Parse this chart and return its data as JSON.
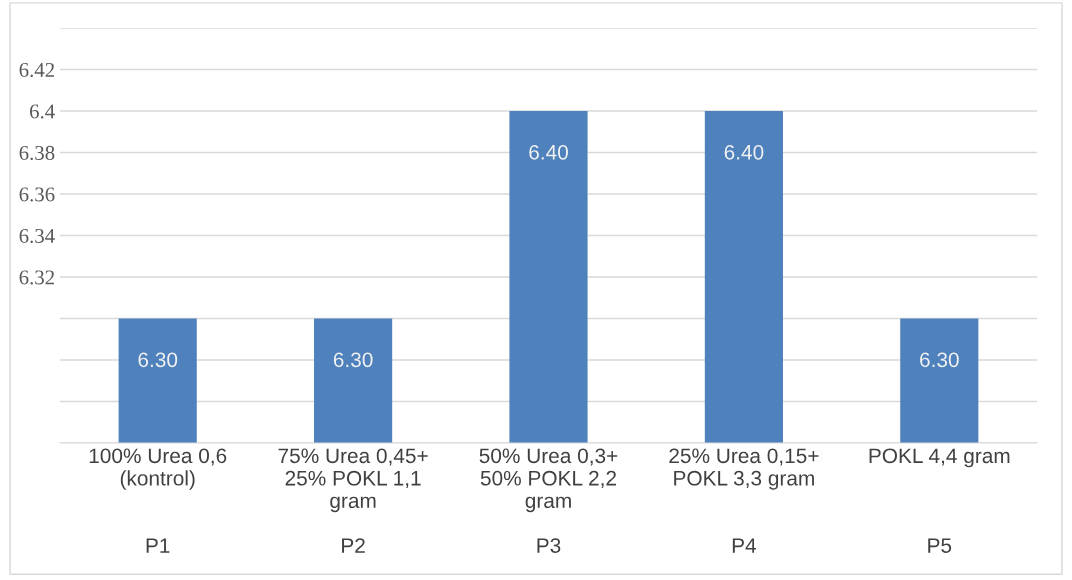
{
  "chart_data": {
    "type": "bar",
    "categories": [
      "100% Urea 0,6\n(kontrol)\n\n\nP1",
      "75% Urea 0,45+\n25% POKL 1,1\ngram\n\nP2",
      "50% Urea 0,3+\n50% POKL 2,2\ngram\n\nP3",
      "25% Urea 0,15+\nPOKL 3,3 gram\n\n\nP4",
      "POKL 4,4 gram\n\n\n\nP5"
    ],
    "values": [
      6.3,
      6.3,
      6.4,
      6.4,
      6.3
    ],
    "color": "#4f81bd",
    "ylim": [
      6.24,
      6.44
    ],
    "yticks": [
      {
        "value": 6.24,
        "label": null
      },
      {
        "value": 6.26,
        "label": null
      },
      {
        "value": 6.28,
        "label": null
      },
      {
        "value": 6.3,
        "label": null
      },
      6.32,
      6.34,
      6.36,
      6.38,
      6.4,
      6.42,
      {
        "value": 6.44,
        "label": null
      }
    ],
    "grid": "y",
    "data_labels": true,
    "value_labels": [
      "6.30",
      "6.30",
      "6.40",
      "6.40",
      "6.30"
    ]
  }
}
